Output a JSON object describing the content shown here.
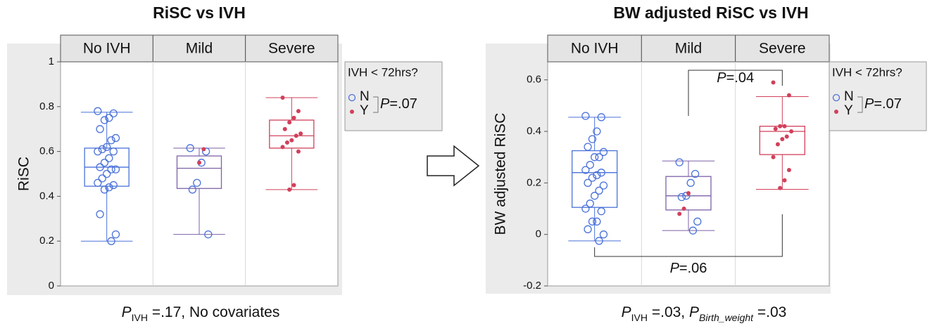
{
  "chart_data": [
    {
      "type": "box",
      "title": "RiSC vs IVH",
      "ylabel": "RiSC",
      "categories": [
        "No IVH",
        "Mild",
        "Severe"
      ],
      "ylim": [
        0,
        1
      ],
      "yticks": [
        0,
        0.2,
        0.4,
        0.6,
        0.8,
        1
      ],
      "box_colors": [
        "#4a72d9",
        "#7d62a8",
        "#d1405b"
      ],
      "boxes": {
        "min": [
          0.2,
          0.23,
          0.43
        ],
        "q1": [
          0.445,
          0.435,
          0.615
        ],
        "median": [
          0.53,
          0.525,
          0.67
        ],
        "q3": [
          0.615,
          0.58,
          0.74
        ],
        "max": [
          0.775,
          0.615,
          0.84
        ]
      },
      "legend_title": "IVH < 72hrs?",
      "legend_note": {
        "symbol": "P",
        "text": "=.07"
      },
      "series": [
        {
          "name": "N",
          "color": "#4a72d9",
          "filled": false,
          "values": [
            [
              0.78,
              0.77,
              0.75,
              0.74,
              0.7,
              0.66,
              0.65,
              0.62,
              0.61,
              0.6,
              0.6,
              0.57,
              0.55,
              0.53,
              0.52,
              0.52,
              0.5,
              0.48,
              0.46,
              0.45,
              0.44,
              0.43,
              0.32,
              0.23,
              0.2
            ],
            [
              0.615,
              0.6,
              0.55,
              0.46,
              0.43,
              0.23
            ],
            []
          ]
        },
        {
          "name": "Y",
          "color": "#d1405b",
          "filled": true,
          "values": [
            [],
            [
              0.61,
              0.55
            ],
            [
              0.84,
              0.78,
              0.75,
              0.73,
              0.7,
              0.68,
              0.67,
              0.65,
              0.64,
              0.62,
              0.6,
              0.45,
              0.43
            ]
          ]
        }
      ],
      "annotations": [],
      "footnote": [
        {
          "text": "P",
          "italic": true
        },
        {
          "text": "IVH",
          "sub": true
        },
        {
          "text": " =.17, No covariates"
        }
      ]
    },
    {
      "type": "box",
      "title": "BW adjusted RiSC vs IVH",
      "ylabel": "BW adjusted RiSC",
      "categories": [
        "No IVH",
        "Mild",
        "Severe"
      ],
      "ylim": [
        -0.2,
        0.67
      ],
      "yticks": [
        -0.2,
        0,
        0.2,
        0.4,
        0.6
      ],
      "box_colors": [
        "#4a72d9",
        "#7d62a8",
        "#d1405b"
      ],
      "boxes": {
        "min": [
          -0.025,
          0.015,
          0.175
        ],
        "q1": [
          0.105,
          0.095,
          0.31
        ],
        "median": [
          0.24,
          0.15,
          0.4
        ],
        "q3": [
          0.325,
          0.225,
          0.42
        ],
        "max": [
          0.455,
          0.285,
          0.535
        ]
      },
      "legend_title": "IVH < 72hrs?",
      "legend_note": {
        "symbol": "P",
        "text": "=.07"
      },
      "series": [
        {
          "name": "N",
          "color": "#4a72d9",
          "filled": false,
          "values": [
            [
              0.46,
              0.455,
              0.4,
              0.37,
              0.34,
              0.32,
              0.3,
              0.3,
              0.27,
              0.25,
              0.24,
              0.23,
              0.22,
              0.2,
              0.19,
              0.17,
              0.15,
              0.12,
              0.1,
              0.09,
              0.05,
              0.05,
              0.02,
              0.0,
              -0.025
            ],
            [
              0.28,
              0.235,
              0.2,
              0.15,
              0.145,
              0.05,
              0.015
            ],
            []
          ]
        },
        {
          "name": "Y",
          "color": "#d1405b",
          "filled": true,
          "values": [
            [],
            [
              0.16,
              0.1,
              0.08
            ],
            [
              0.59,
              0.54,
              0.42,
              0.42,
              0.41,
              0.4,
              0.38,
              0.37,
              0.35,
              0.3,
              0.25,
              0.21,
              0.18
            ]
          ]
        }
      ],
      "annotations": [
        {
          "symbol": "P",
          "text": "=.04"
        },
        {
          "symbol": "P",
          "text": "=.06"
        }
      ],
      "footnote": [
        {
          "text": "P",
          "italic": true
        },
        {
          "text": "IVH",
          "sub": true
        },
        {
          "text": " =.03, "
        },
        {
          "text": "P",
          "italic": true
        },
        {
          "text": "Birth_weight",
          "sub": true,
          "italic": true
        },
        {
          "text": " =.03"
        }
      ]
    }
  ]
}
